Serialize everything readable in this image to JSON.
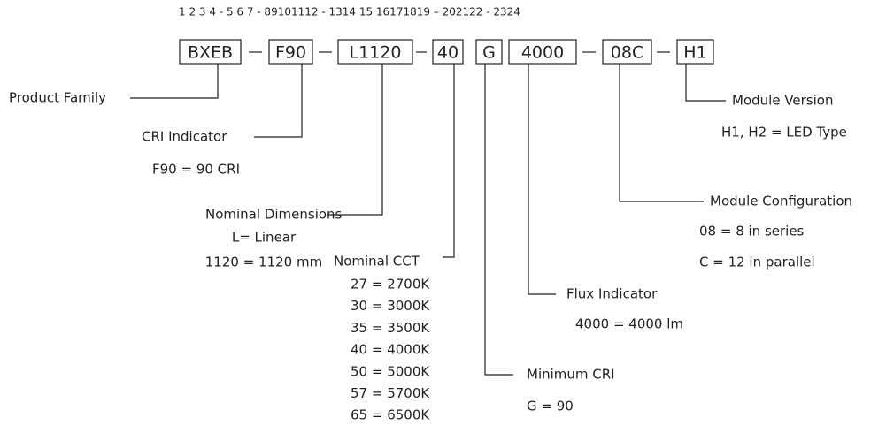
{
  "position_numbers": "1 2 3 4   -   5 6 7   -   89101112   - 1314   15 16171819 – 202122 - 2324",
  "segments": [
    {
      "code": "BXEB",
      "label": "Product Family",
      "details": []
    },
    {
      "code": "F90",
      "label": "CRI Indicator",
      "details": [
        "F90 = 90 CRI"
      ]
    },
    {
      "code": "L1120",
      "label": "Nominal Dimensions",
      "details": [
        "L= Linear",
        "1120 = 1120 mm"
      ]
    },
    {
      "code": "40",
      "label": "Nominal CCT",
      "details": [
        "27 = 2700K",
        "30 = 3000K",
        "35 = 3500K",
        "40 = 4000K",
        "50 = 5000K",
        "57 = 5700K",
        "65 = 6500K"
      ]
    },
    {
      "code": "G",
      "label": "Minimum CRI",
      "details": [
        "G = 90"
      ]
    },
    {
      "code": "4000",
      "label": "Flux Indicator",
      "details": [
        "4000 = 4000 lm"
      ]
    },
    {
      "code": "08C",
      "label": "Module Configuration",
      "details": [
        "08 = 8 in series",
        "C = 12 in parallel"
      ]
    },
    {
      "code": "H1",
      "label": "Module Version",
      "details": [
        "H1, H2 = LED Type"
      ]
    }
  ]
}
